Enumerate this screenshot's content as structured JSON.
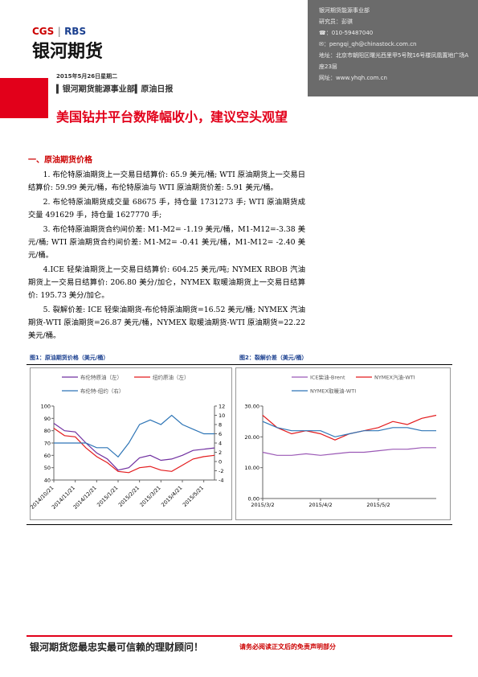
{
  "header": {
    "info": [
      "银河期货能源事业部",
      "研究员：彭骐",
      "☎：010-59487040",
      "✉：pengqi_qh@chinastock.com.cn",
      "地址：北京市朝阳区曙光西里甲5号院16号楼凤凰置地广场A座23层",
      "网址：www.yhqh.com.cn"
    ]
  },
  "logo": {
    "brand1": "CGS",
    "brand2": "RBS",
    "name": "银河期货"
  },
  "date": "2015年5月26日星期二",
  "dept": "银河期货能源事业部",
  "report": "原油日报",
  "title": "美国钻井平台数降幅收小，建议空头观望",
  "section": "一、原油期货价格",
  "paragraphs": [
    "1. 布伦特原油期货上一交易日结算价: 65.9 美元/桶; WTI 原油期货上一交易日结算价: 59.99 美元/桶，布伦特原油与 WTI 原油期货价差: 5.91 美元/桶。",
    "2. 布伦特原油期货成交量 68675 手，持仓量 1731273 手; WTI 原油期货成交量 491629 手，持仓量 1627770 手;",
    "3. 布伦特原油期货合约间价差: M1-M2= -1.19 美元/桶，M1-M12=-3.38 美元/桶; WTI 原油期货合约间价差: M1-M2= -0.41 美元/桶，M1-M12= -2.40 美元/桶。",
    "4.ICE 轻柴油期货上一交易日结算价: 604.25 美元/吨; NYMEX RBOB 汽油期货上一交易日结算价: 206.80 美分/加仑，NYMEX 取暖油期货上一交易日结算价: 195.73 美分/加仑。",
    "5. 裂解价差: ICE 轻柴油期货-布伦特原油期货=16.52 美元/桶; NYMEX 汽油期货-WTI 原油期货=26.87 美元/桶，NYMEX 取暖油期货-WTI 原油期货=22.22 美元/桶。"
  ],
  "figures": [
    {
      "caption": "图1：原油期货价格（美元/桶）"
    },
    {
      "caption": "图2：裂解价差（美元/桶）"
    }
  ],
  "chart_data": [
    {
      "type": "line",
      "categories": [
        "2014/10/21",
        null,
        "2014/11/21",
        null,
        "2014/12/21",
        null,
        "2015/1/21",
        null,
        "2015/2/21",
        null,
        "2015/3/21",
        null,
        "2015/4/21",
        null,
        "2015/5/21",
        null
      ],
      "series": [
        {
          "name": "布伦特原油（左）",
          "color": "#7030a0",
          "values": [
            86,
            80,
            79,
            70,
            62,
            57,
            48,
            50,
            58,
            60,
            56,
            57,
            60,
            64,
            65,
            66
          ]
        },
        {
          "name": "纽约原油（左）",
          "color": "#e31a1c",
          "values": [
            82,
            76,
            75,
            66,
            59,
            54,
            47,
            46,
            50,
            51,
            48,
            47,
            52,
            57,
            59,
            60
          ]
        },
        {
          "name": "布伦特-纽约（右）",
          "color": "#2e75b6",
          "axis": "y2",
          "values": [
            4,
            4,
            4,
            4,
            3,
            3,
            1,
            4,
            8,
            9,
            8,
            10,
            8,
            7,
            6,
            6
          ]
        }
      ],
      "ylim": [
        40,
        100
      ],
      "yticks": [
        40,
        50,
        60,
        70,
        80,
        90,
        100
      ],
      "y2lim": [
        -4,
        12
      ],
      "y2ticks": [
        -4,
        -2,
        0,
        2,
        4,
        6,
        8,
        10,
        12
      ]
    },
    {
      "type": "line",
      "categories": [
        "2015/3/2",
        null,
        null,
        null,
        "2015/4/2",
        null,
        null,
        null,
        "2015/5/2",
        null,
        null,
        null,
        null
      ],
      "series": [
        {
          "name": "ICE柴油-Brent",
          "color": "#9b59b6",
          "values": [
            15,
            14,
            14,
            14.5,
            14,
            14.5,
            15,
            15,
            15.5,
            16,
            16,
            16.5,
            16.5
          ]
        },
        {
          "name": "NYMEX汽油-WTI",
          "color": "#e31a1c",
          "values": [
            27,
            23,
            21,
            22,
            21,
            19,
            21,
            22,
            23,
            25,
            24,
            26,
            27
          ]
        },
        {
          "name": "NYMEX取暖油-WTI",
          "color": "#2e75b6",
          "values": [
            25,
            23,
            22,
            22,
            22,
            20,
            21,
            22,
            22,
            23,
            23,
            22,
            22
          ]
        }
      ],
      "ylim": [
        0,
        30
      ],
      "yticks": [
        {
          "value": 0,
          "label": "0.00"
        },
        {
          "value": 10,
          "label": "10.00"
        },
        {
          "value": 20,
          "label": "20.00"
        },
        {
          "value": 30,
          "label": "30.00"
        }
      ]
    }
  ],
  "footer": {
    "slogan": "银河期货您最忠实最可信赖的理财顾问！",
    "disclaimer": "请务必阅读正文后的免责声明部分"
  }
}
